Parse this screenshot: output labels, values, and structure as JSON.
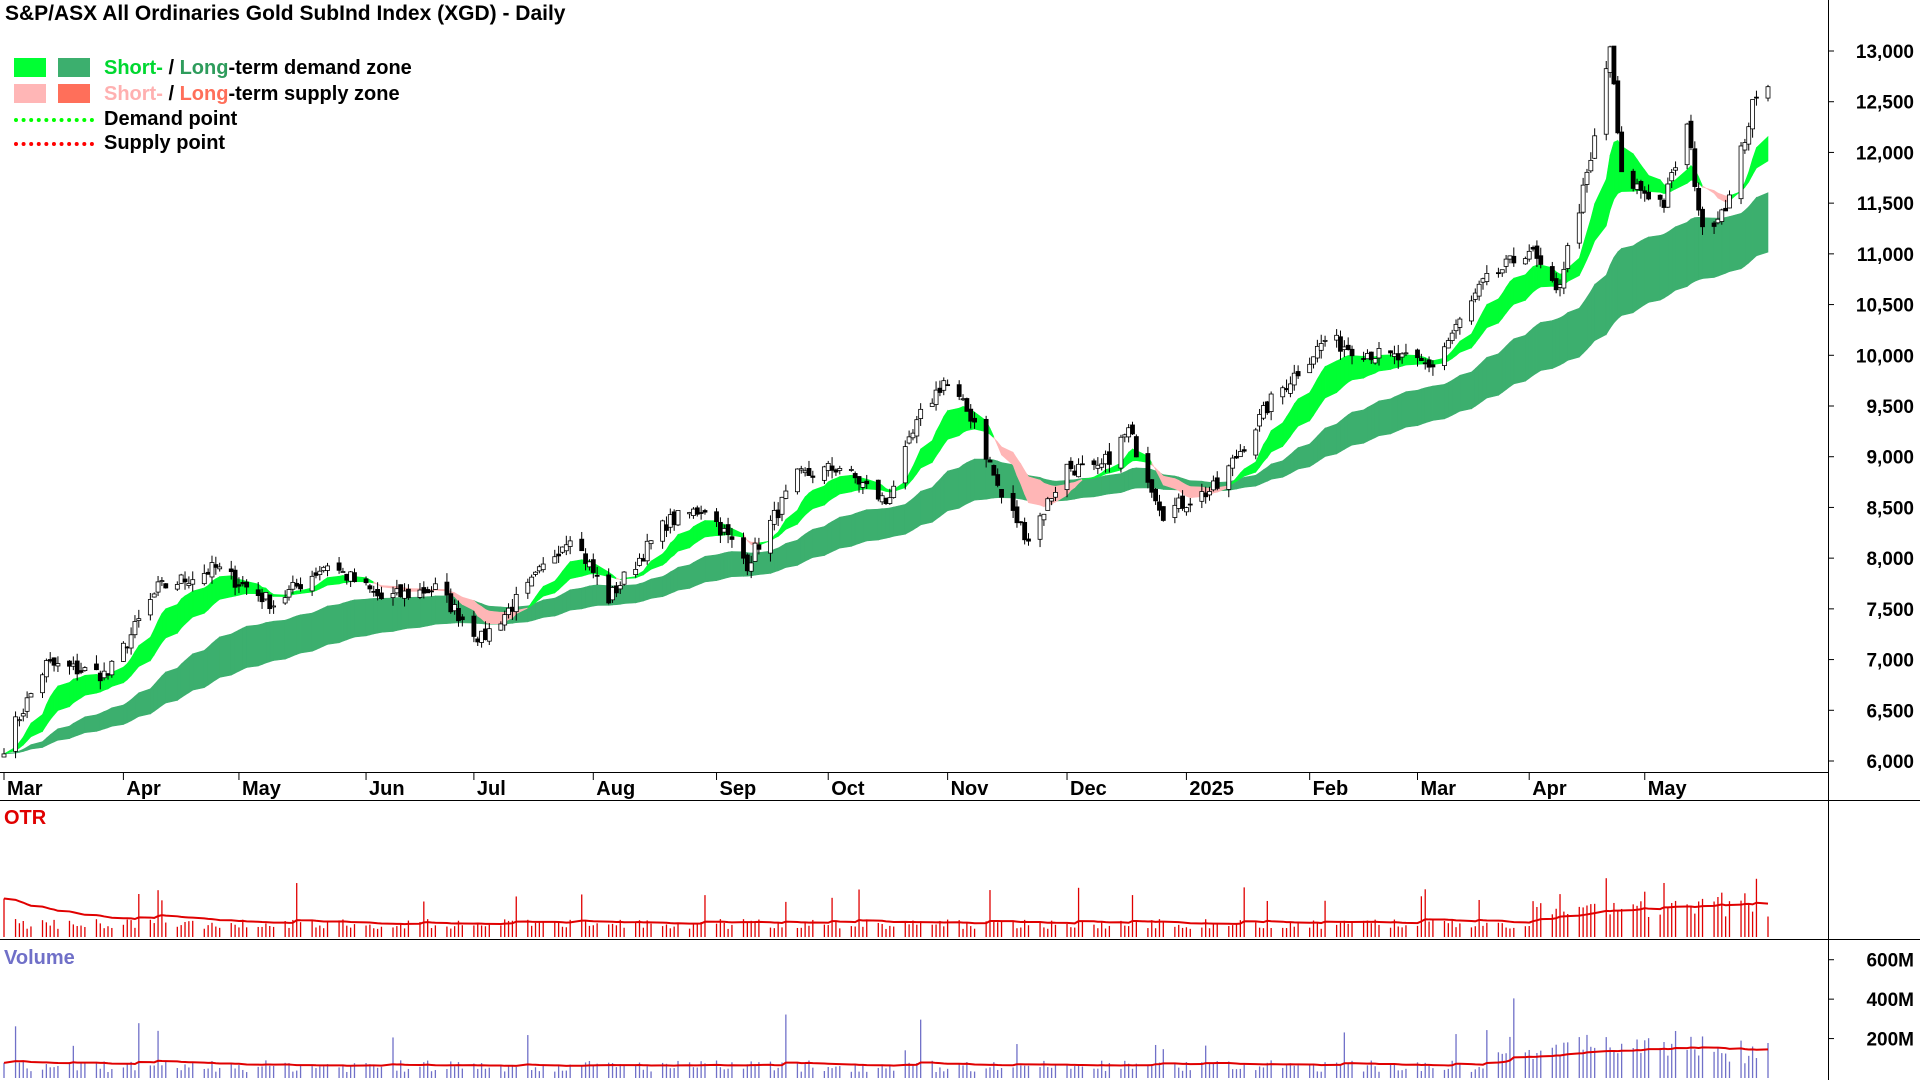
{
  "chart_data": [
    {
      "type": "candlestick",
      "title": "S&P/ASX All Ordinaries Gold SubInd Index (XGD) - Daily",
      "x_labels": [
        "Mar",
        "Apr",
        "May",
        "Jun",
        "Jul",
        "Aug",
        "Sep",
        "Oct",
        "Nov",
        "Dec",
        "2025",
        "Feb",
        "Mar",
        "Apr",
        "May"
      ],
      "y_ticks": [
        "13,000",
        "12,500",
        "12,000",
        "11,500",
        "11,000",
        "10,500",
        "10,000",
        "9,500",
        "9,000",
        "8,500",
        "8,000",
        "7,500",
        "7,000",
        "6,500",
        "6,000"
      ],
      "ylim": [
        5850,
        13400
      ],
      "approx_close_path": [
        [
          "2024-03-01",
          6150
        ],
        [
          "2024-03-12",
          6950
        ],
        [
          "2024-03-28",
          6850
        ],
        [
          "2024-04-10",
          7700
        ],
        [
          "2024-04-25",
          7900
        ],
        [
          "2024-05-10",
          7550
        ],
        [
          "2024-05-24",
          7950
        ],
        [
          "2024-06-07",
          7600
        ],
        [
          "2024-06-21",
          7700
        ],
        [
          "2024-07-03",
          7200
        ],
        [
          "2024-07-15",
          7700
        ],
        [
          "2024-07-26",
          8250
        ],
        [
          "2024-08-05",
          7600
        ],
        [
          "2024-08-20",
          8350
        ],
        [
          "2024-08-30",
          8500
        ],
        [
          "2024-09-10",
          7950
        ],
        [
          "2024-09-23",
          8800
        ],
        [
          "2024-10-04",
          8900
        ],
        [
          "2024-10-16",
          8550
        ],
        [
          "2024-10-25",
          9400
        ],
        [
          "2024-10-31",
          9750
        ],
        [
          "2024-11-08",
          9350
        ],
        [
          "2024-11-15",
          8600
        ],
        [
          "2024-11-22",
          8200
        ],
        [
          "2024-12-02",
          8900
        ],
        [
          "2024-12-10",
          8850
        ],
        [
          "2024-12-18",
          9250
        ],
        [
          "2024-12-27",
          8450
        ],
        [
          "2025-01-10",
          8700
        ],
        [
          "2025-01-24",
          9550
        ],
        [
          "2025-02-07",
          10150
        ],
        [
          "2025-02-21",
          10000
        ],
        [
          "2025-03-07",
          9900
        ],
        [
          "2025-03-20",
          10700
        ],
        [
          "2025-04-01",
          11050
        ],
        [
          "2025-04-08",
          10600
        ],
        [
          "2025-04-17",
          11900
        ],
        [
          "2025-04-22",
          13050
        ],
        [
          "2025-04-25",
          11750
        ],
        [
          "2025-05-06",
          11500
        ],
        [
          "2025-05-12",
          12250
        ],
        [
          "2025-05-16",
          11200
        ],
        [
          "2025-05-23",
          11550
        ],
        [
          "2025-05-29",
          12450
        ],
        [
          "2025-06-02",
          12700
        ]
      ],
      "legend": [
        {
          "label": "Short- / Long-term demand zone",
          "short_color": "#00ff33",
          "long_color": "#3caf6e"
        },
        {
          "label": "Short- / Long-term supply zone",
          "short_color": "#ffb6b6",
          "long_color": "#ff6f5a"
        },
        {
          "label": "Demand point",
          "color": "#00ff00"
        },
        {
          "label": "Supply point",
          "color": "#ff0000"
        }
      ]
    },
    {
      "type": "bar",
      "title": "OTR",
      "note": "daily bars with moving-average line",
      "color": "#e00000"
    },
    {
      "type": "bar",
      "title": "Volume",
      "y_ticks": [
        "600M",
        "400M",
        "200M"
      ],
      "ylim": [
        0,
        700
      ],
      "units": "M",
      "bar_color": "#7070c8",
      "ma_color": "#e00000"
    }
  ],
  "legend_text": {
    "short": "Short-",
    "sep": " / ",
    "long": "Long",
    "demand_rest": "-term demand zone",
    "supply_rest": "-term supply zone",
    "demand_point": "Demand point",
    "supply_point": "Supply point"
  },
  "colors": {
    "demand_short": "#00ff33",
    "demand_long": "#3caf6e",
    "supply_short": "#ffb6b6",
    "supply_long": "#ff6f5a",
    "demand_point": "#00ff00",
    "supply_point": "#ff0000",
    "otr": "#e00000",
    "volume": "#7070c8"
  }
}
